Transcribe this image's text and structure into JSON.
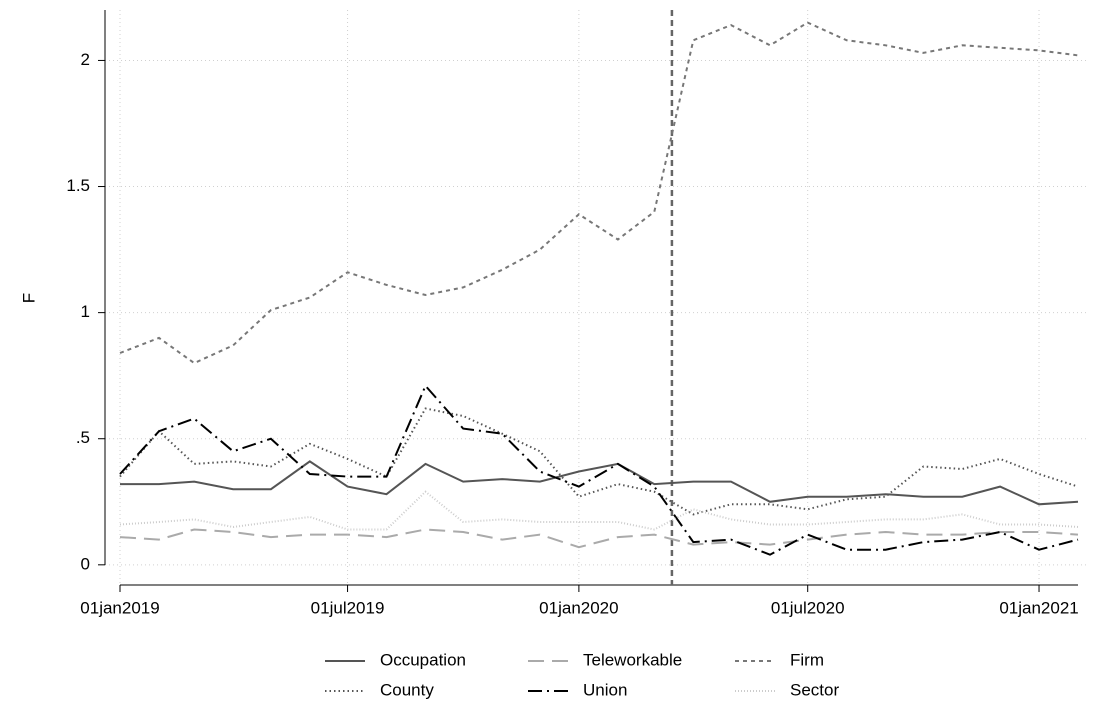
{
  "chart_data": {
    "type": "line",
    "y_label": "F",
    "x": [
      "2019-01-01",
      "2019-02-01",
      "2019-03-01",
      "2019-04-01",
      "2019-05-01",
      "2019-06-01",
      "2019-07-01",
      "2019-08-01",
      "2019-09-01",
      "2019-10-01",
      "2019-11-01",
      "2019-12-01",
      "2020-01-01",
      "2020-02-01",
      "2020-03-01",
      "2020-04-01",
      "2020-05-01",
      "2020-06-01",
      "2020-07-01",
      "2020-08-01",
      "2020-09-01",
      "2020-10-01",
      "2020-11-01",
      "2020-12-01",
      "2021-01-01",
      "2021-02-01"
    ],
    "xlim": [
      "2019-01-01",
      "2021-02-01"
    ],
    "xticks": [
      {
        "value": "2019-01-01",
        "label": "01jan2019"
      },
      {
        "value": "2019-07-01",
        "label": "01jul2019"
      },
      {
        "value": "2020-01-01",
        "label": "01jan2020"
      },
      {
        "value": "2020-07-01",
        "label": "01jul2020"
      },
      {
        "value": "2021-01-01",
        "label": "01jan2021"
      }
    ],
    "ylim": [
      -0.08,
      2.2
    ],
    "yticks": [
      0,
      {
        "value": 0.5,
        "label": ".5"
      },
      1,
      1.5,
      2
    ],
    "grid": true,
    "vline": "2020-03-15",
    "series": [
      {
        "name": "Occupation",
        "color": "#555555",
        "dash": "solid",
        "values": [
          0.32,
          0.32,
          0.33,
          0.3,
          0.3,
          0.41,
          0.31,
          0.28,
          0.4,
          0.33,
          0.34,
          0.33,
          0.37,
          0.4,
          0.32,
          0.33,
          0.33,
          0.25,
          0.27,
          0.27,
          0.28,
          0.27,
          0.27,
          0.31,
          0.24,
          0.25
        ]
      },
      {
        "name": "Teleworkable",
        "color": "#aaaaaa",
        "dash": "longdash",
        "values": [
          0.11,
          0.1,
          0.14,
          0.13,
          0.11,
          0.12,
          0.12,
          0.11,
          0.14,
          0.13,
          0.1,
          0.12,
          0.07,
          0.11,
          0.12,
          0.08,
          0.09,
          0.08,
          0.1,
          0.12,
          0.13,
          0.12,
          0.12,
          0.13,
          0.13,
          0.12
        ]
      },
      {
        "name": "Firm",
        "color": "#777777",
        "dash": "shortdash",
        "values": [
          0.84,
          0.9,
          0.8,
          0.87,
          1.01,
          1.06,
          1.16,
          1.11,
          1.07,
          1.1,
          1.17,
          1.25,
          1.39,
          1.29,
          1.4,
          2.08,
          2.14,
          2.06,
          2.15,
          2.08,
          2.06,
          2.03,
          2.06,
          2.05,
          2.04,
          2.02
        ]
      },
      {
        "name": "County",
        "color": "#555555",
        "dash": "dot",
        "values": [
          0.35,
          0.53,
          0.4,
          0.41,
          0.39,
          0.48,
          0.42,
          0.35,
          0.62,
          0.59,
          0.52,
          0.45,
          0.27,
          0.32,
          0.29,
          0.2,
          0.24,
          0.24,
          0.22,
          0.26,
          0.27,
          0.39,
          0.38,
          0.42,
          0.36,
          0.31
        ]
      },
      {
        "name": "Union",
        "color": "#000000",
        "dash": "longdashdot",
        "values": [
          0.36,
          0.53,
          0.58,
          0.45,
          0.5,
          0.36,
          0.35,
          0.35,
          0.71,
          0.54,
          0.52,
          0.37,
          0.31,
          0.4,
          0.31,
          0.09,
          0.1,
          0.04,
          0.12,
          0.06,
          0.06,
          0.09,
          0.1,
          0.13,
          0.06,
          0.1
        ]
      },
      {
        "name": "Sector",
        "color": "#cccccc",
        "dash": "finedot",
        "values": [
          0.16,
          0.17,
          0.18,
          0.15,
          0.17,
          0.19,
          0.14,
          0.14,
          0.29,
          0.17,
          0.18,
          0.17,
          0.17,
          0.17,
          0.14,
          0.22,
          0.18,
          0.16,
          0.16,
          0.17,
          0.18,
          0.18,
          0.2,
          0.16,
          0.16,
          0.15
        ]
      }
    ]
  }
}
